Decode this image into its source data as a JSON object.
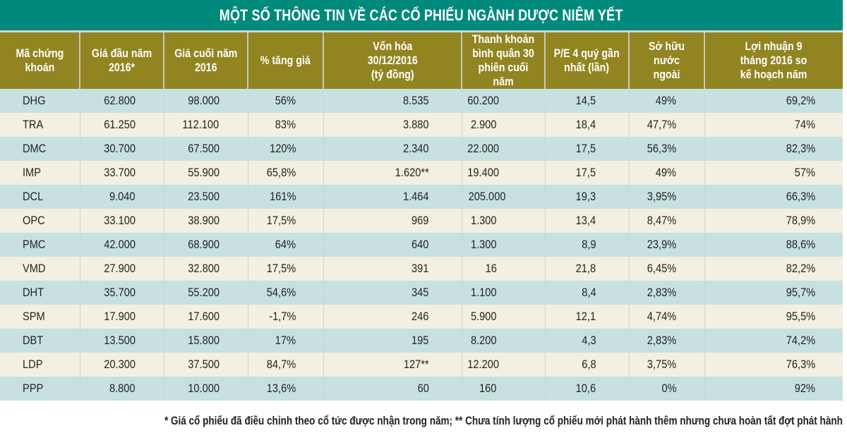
{
  "title": "MỘT SỐ THÔNG TIN VỀ CÁC CỔ PHIẾU NGÀNH DƯỢC NIÊM YẾT",
  "colors": {
    "title_bg": "#008a7c",
    "header_bg": "#928420",
    "row_odd": "#c8e0e0",
    "row_even": "#f3efe1"
  },
  "headers": [
    [
      "Mã chứng",
      "khoán"
    ],
    [
      "Giá đầu năm",
      "2016*"
    ],
    [
      "Giá cuối năm",
      "2016"
    ],
    [
      "% tăng giá"
    ],
    [
      "Vốn hóa",
      "30/12/2016",
      "(tỷ đồng)"
    ],
    [
      "Thanh khoản",
      "bình quân 30",
      "phiên cuối năm"
    ],
    [
      "P/E 4 quý gần",
      "nhất (lần)"
    ],
    [
      "Sở hữu nước",
      "ngoài"
    ],
    [
      "Lợi nhuận 9",
      "tháng 2016 so",
      "kế hoạch năm"
    ]
  ],
  "rows": [
    [
      "DHG",
      "62.800",
      "98.000",
      "56%",
      "8.535",
      "60.200",
      "14,5",
      "49%",
      "69,2%"
    ],
    [
      "TRA",
      "61.250",
      "112.100",
      "83%",
      "3.880",
      "2.900",
      "18,4",
      "47,7%",
      "74%"
    ],
    [
      "DMC",
      "30.700",
      "67.500",
      "120%",
      "2.340",
      "22.000",
      "17,5",
      "56,3%",
      "82,3%"
    ],
    [
      "IMP",
      "33.700",
      "55.900",
      "65,8%",
      "1.620**",
      "19.400",
      "17,5",
      "49%",
      "57%"
    ],
    [
      "DCL",
      "9.040",
      "23.500",
      "161%",
      "1.464",
      "205.000",
      "19,3",
      "3,95%",
      "66,3%"
    ],
    [
      "OPC",
      "33.100",
      "38.900",
      "17,5%",
      "969",
      "1.300",
      "13,4",
      "8,47%",
      "78,9%"
    ],
    [
      "PMC",
      "42.000",
      "68.900",
      "64%",
      "640",
      "1.300",
      "8,9",
      "23,9%",
      "88,6%"
    ],
    [
      "VMD",
      "27.900",
      "32.800",
      "17,5%",
      "391",
      "16",
      "21,8",
      "6,45%",
      "82,2%"
    ],
    [
      "DHT",
      "35.700",
      "55.200",
      "54,6%",
      "345",
      "1.100",
      "8,4",
      "2,83%",
      "95,7%"
    ],
    [
      "SPM",
      "17.900",
      "17.600",
      "-1,7%",
      "246",
      "5.900",
      "12,1",
      "4,74%",
      "95,5%"
    ],
    [
      "DBT",
      "13.500",
      "15.800",
      "17%",
      "195",
      "8.200",
      "4,3",
      "2,83%",
      "74,2%"
    ],
    [
      "LDP",
      "20.300",
      "37.500",
      "84,7%",
      "127**",
      "12.200",
      "6,8",
      "3,75%",
      "76,3%"
    ],
    [
      "PPP",
      "8.800",
      "10.000",
      "13,6%",
      "60",
      "160",
      "10,6",
      "0%",
      "92%"
    ]
  ],
  "footnote": "* Giá cổ phiếu đã điều chỉnh theo cổ tức được nhận trong năm; ** Chưa tính lượng cổ phiếu mới phát hành thêm nhưng chưa hoàn tất đợt phát hành"
}
